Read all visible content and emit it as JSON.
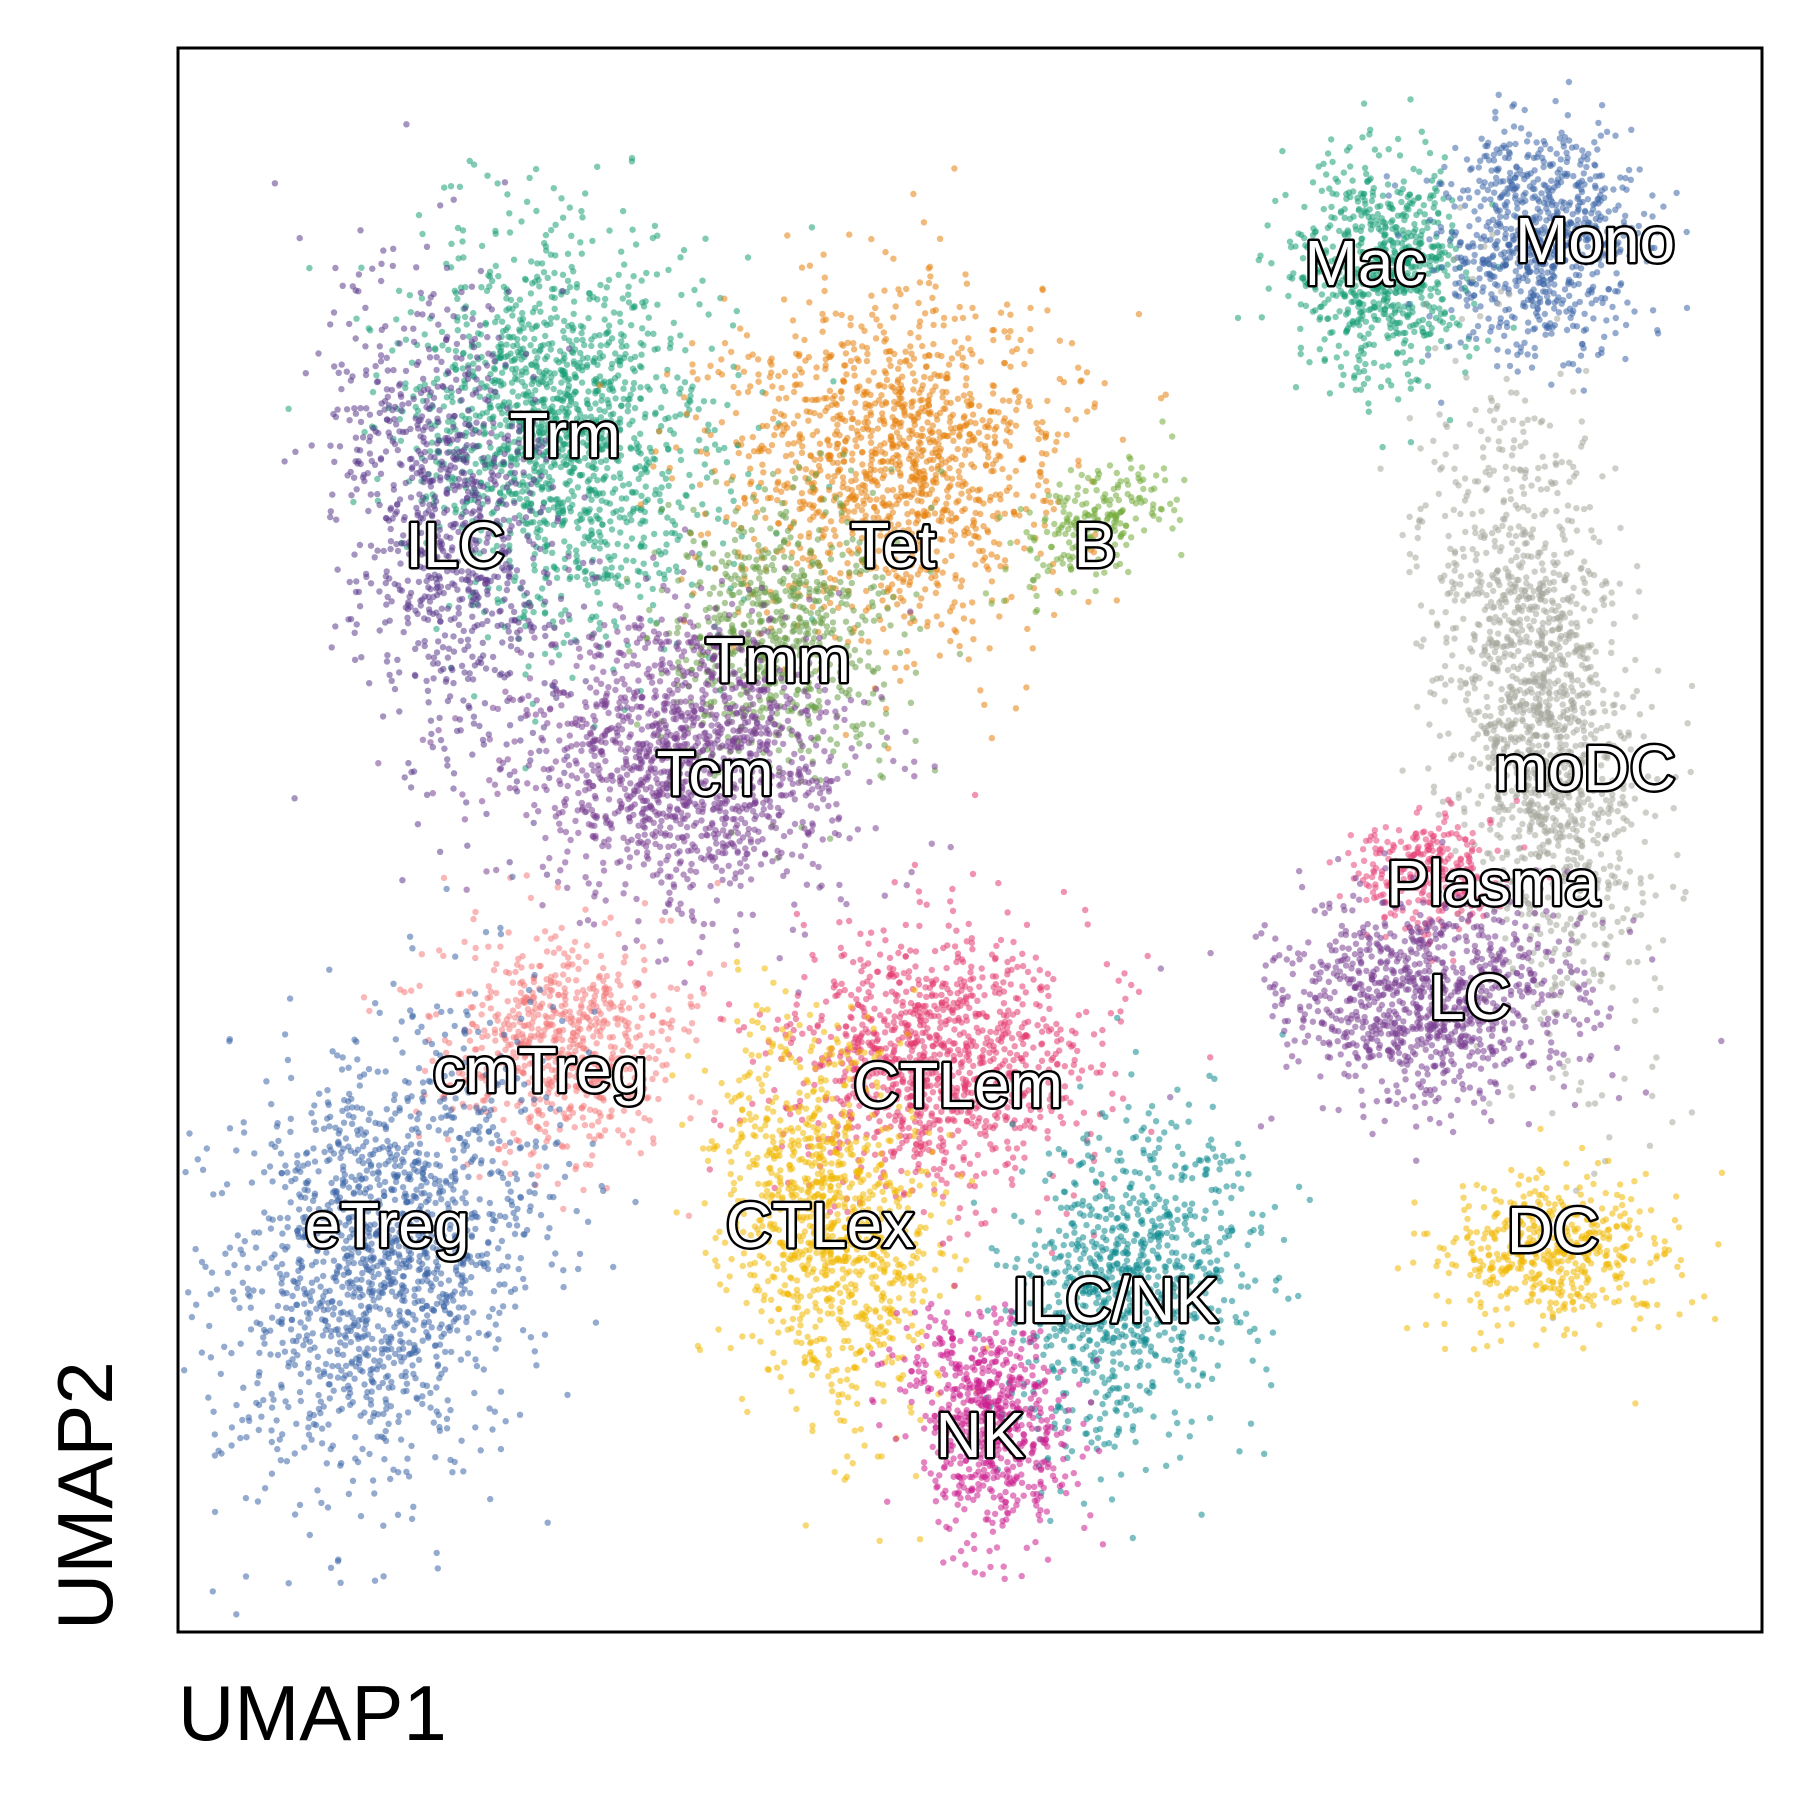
{
  "chart_data": {
    "type": "scatter",
    "title": "",
    "xlabel": "UMAP1",
    "ylabel": "UMAP2",
    "xlim": [
      0,
      100
    ],
    "ylim": [
      0,
      100
    ],
    "grid": false,
    "ticks": false,
    "clusters": [
      {
        "name": "Trm",
        "color": "#1a9e77",
        "center": [
          24,
          76
        ]
      },
      {
        "name": "ILC",
        "color": "#5b3a8c",
        "center": [
          17,
          70
        ]
      },
      {
        "name": "Tet",
        "color": "#e6820e",
        "center": [
          45,
          74
        ]
      },
      {
        "name": "B",
        "color": "#72ab3a",
        "center": [
          58,
          70
        ]
      },
      {
        "name": "Tmm",
        "color": "#6a9f47",
        "center": [
          38,
          63
        ]
      },
      {
        "name": "Tcm",
        "color": "#7a3f91",
        "center": [
          32,
          55
        ]
      },
      {
        "name": "cmTreg",
        "color": "#f47c7c",
        "center": [
          24,
          37
        ]
      },
      {
        "name": "eTreg",
        "color": "#3d66a8",
        "center": [
          13,
          24
        ]
      },
      {
        "name": "CTLem",
        "color": "#e33a6f",
        "center": [
          48,
          36
        ]
      },
      {
        "name": "CTLex",
        "color": "#f0b800",
        "center": [
          41,
          26
        ]
      },
      {
        "name": "ILC/NK",
        "color": "#0f8a8f",
        "center": [
          60,
          22
        ]
      },
      {
        "name": "NK",
        "color": "#cc1e8e",
        "center": [
          51,
          13
        ]
      },
      {
        "name": "Mac",
        "color": "#1a9e77",
        "center": [
          76,
          86
        ]
      },
      {
        "name": "Mono",
        "color": "#3d66a8",
        "center": [
          86,
          88
        ]
      },
      {
        "name": "moDC",
        "color": "#a6a89c",
        "center": [
          86,
          58
        ]
      },
      {
        "name": "Plasma",
        "color": "#e8457a",
        "center": [
          79,
          48
        ]
      },
      {
        "name": "LC",
        "color": "#7a3f91",
        "center": [
          79,
          40
        ]
      },
      {
        "name": "DC",
        "color": "#f0b800",
        "center": [
          87,
          24
        ]
      }
    ]
  }
}
